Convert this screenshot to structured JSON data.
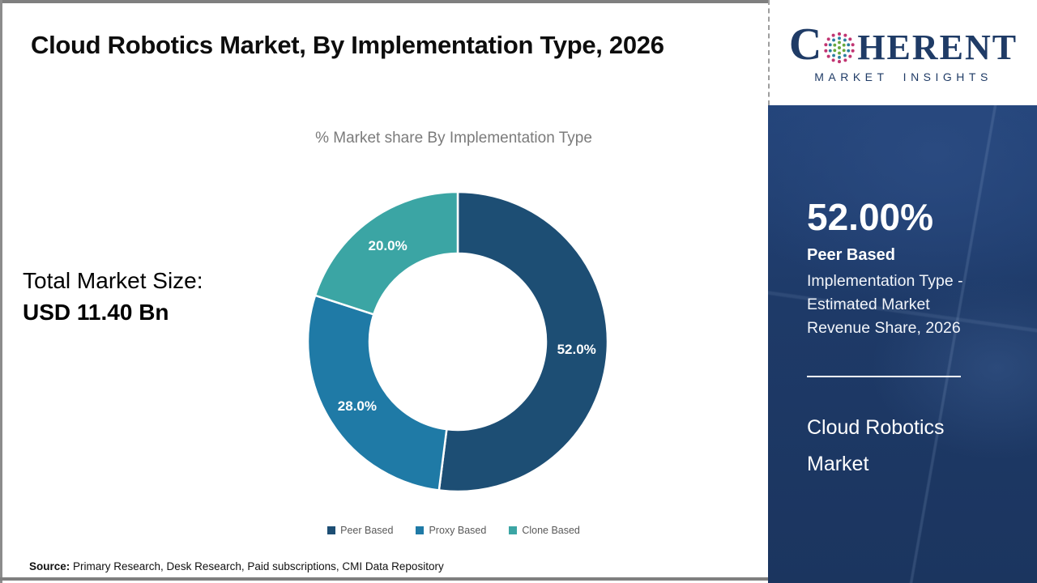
{
  "header": {
    "title": "Cloud Robotics Market, By Implementation Type, 2026",
    "subtitle": "% Market share By Implementation Type"
  },
  "total_market": {
    "label": "Total Market Size:",
    "value": "USD 11.40 Bn"
  },
  "logo": {
    "part1": "C",
    "part2": "HERENT",
    "tagline": "MARKET INSIGHTS"
  },
  "sidebar": {
    "highlight_value": "52.00%",
    "highlight_name": "Peer Based",
    "highlight_desc": "Implementation Type - Estimated Market Revenue Share, 2026",
    "footer_title": "Cloud Robotics Market"
  },
  "source": {
    "label": "Source:",
    "text": "Primary Research, Desk Research, Paid subscriptions, CMI Data Repository"
  },
  "colors": {
    "sidebar_navy": "#1e3a68",
    "logo_navy": "#1f3b66",
    "frame_gray": "#7f7f7f",
    "globe_green": "#68a93e",
    "globe_teal": "#2c7fa0",
    "globe_magenta": "#c13572"
  },
  "chart_data": {
    "type": "pie",
    "donut": true,
    "title": "% Market share By Implementation Type",
    "start_angle_deg": 0,
    "direction": "clockwise",
    "legend_position": "bottom",
    "hole_ratio": 0.59,
    "series": [
      {
        "name": "Peer Based",
        "value": 52.0,
        "label": "52.0%",
        "color": "#1d4e74"
      },
      {
        "name": "Proxy Based",
        "value": 28.0,
        "label": "28.0%",
        "color": "#1f7aa6"
      },
      {
        "name": "Clone Based",
        "value": 20.0,
        "label": "20.0%",
        "color": "#3ba5a4"
      }
    ]
  }
}
